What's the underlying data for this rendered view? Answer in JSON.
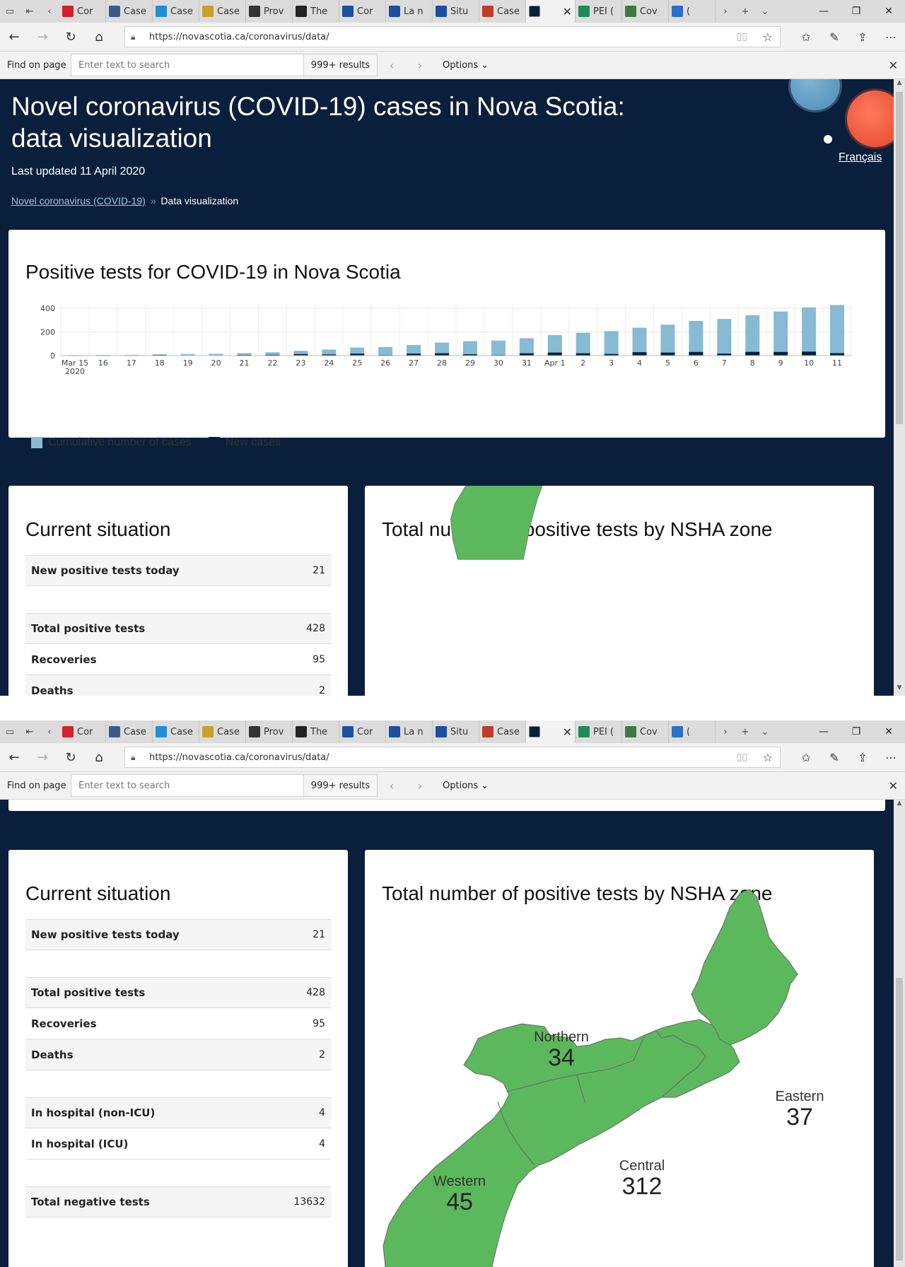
{
  "browser": {
    "tabs": [
      {
        "label": "Cor",
        "color": "#d1202e"
      },
      {
        "label": "Case",
        "color": "#3a5a8c"
      },
      {
        "label": "Case",
        "color": "#1f8fd1"
      },
      {
        "label": "Case",
        "color": "#c7a22b"
      },
      {
        "label": "Prov",
        "color": "#333333"
      },
      {
        "label": "The",
        "color": "#222222"
      },
      {
        "label": "Cor",
        "color": "#1b4fa0"
      },
      {
        "label": "La n",
        "color": "#1b4fa0"
      },
      {
        "label": "Situ",
        "color": "#1b4fa0"
      },
      {
        "label": "Case",
        "color": "#c0392b"
      },
      {
        "label": "PEI (",
        "color": "#1c8a5a"
      },
      {
        "label": "Cov",
        "color": "#3d7a3d"
      },
      {
        "label": "(",
        "color": "#2a6fc9"
      }
    ],
    "url": "https://novascotia.ca/coronavirus/data/",
    "find": {
      "label": "Find on page",
      "placeholder": "Enter text to search",
      "results": "999+ results",
      "options": "Options"
    }
  },
  "page": {
    "title": "Novel coronavirus (COVID-19) cases in Nova Scotia: data visualization",
    "updated": "Last updated 11 April 2020",
    "breadcrumb": {
      "parent": "Novel coronavirus (COVID-19)",
      "separator": "»",
      "current": "Data visualization"
    },
    "language_link": "Français"
  },
  "chart_data": {
    "type": "bar",
    "title": "Positive tests for COVID-19 in Nova Scotia",
    "categories": [
      "Mar 15 2020",
      "16",
      "17",
      "18",
      "19",
      "20",
      "21",
      "22",
      "23",
      "24",
      "25",
      "26",
      "27",
      "28",
      "29",
      "30",
      "31",
      "Apr 1",
      "2",
      "3",
      "4",
      "5",
      "6",
      "7",
      "8",
      "9",
      "10",
      "11"
    ],
    "series": [
      {
        "name": "Cumulative number of cases",
        "color": "#87bad3",
        "values": [
          5,
          7,
          7,
          12,
          14,
          15,
          21,
          28,
          41,
          51,
          68,
          73,
          90,
          110,
          122,
          127,
          147,
          173,
          193,
          207,
          236,
          262,
          293,
          310,
          342,
          373,
          407,
          428
        ]
      },
      {
        "name": "New cases",
        "color": "#0a1f3c",
        "values": [
          2,
          2,
          0,
          5,
          2,
          1,
          6,
          7,
          13,
          10,
          17,
          5,
          17,
          20,
          12,
          5,
          20,
          26,
          20,
          14,
          29,
          26,
          31,
          17,
          32,
          31,
          34,
          21
        ]
      }
    ],
    "yticks": [
      0,
      200,
      400
    ],
    "ylim": [
      0,
      430
    ],
    "legend": "bottom-left"
  },
  "situation": {
    "title": "Current situation",
    "groups": [
      [
        {
          "label": "New positive tests today",
          "value": "21"
        }
      ],
      [
        {
          "label": "Total positive tests",
          "value": "428"
        },
        {
          "label": "Recoveries",
          "value": "95"
        },
        {
          "label": "Deaths",
          "value": "2"
        }
      ],
      [
        {
          "label": "In hospital (non-ICU)",
          "value": "4"
        },
        {
          "label": "In hospital (ICU)",
          "value": "4"
        }
      ],
      [
        {
          "label": "Total negative tests",
          "value": "13632"
        }
      ]
    ]
  },
  "zones": {
    "title": "Total number of positive tests by NSHA zone",
    "map_color": "#5cb85c",
    "items": [
      {
        "name": "Northern",
        "value": "34"
      },
      {
        "name": "Eastern",
        "value": "37"
      },
      {
        "name": "Central",
        "value": "312"
      },
      {
        "name": "Western",
        "value": "45"
      }
    ]
  }
}
